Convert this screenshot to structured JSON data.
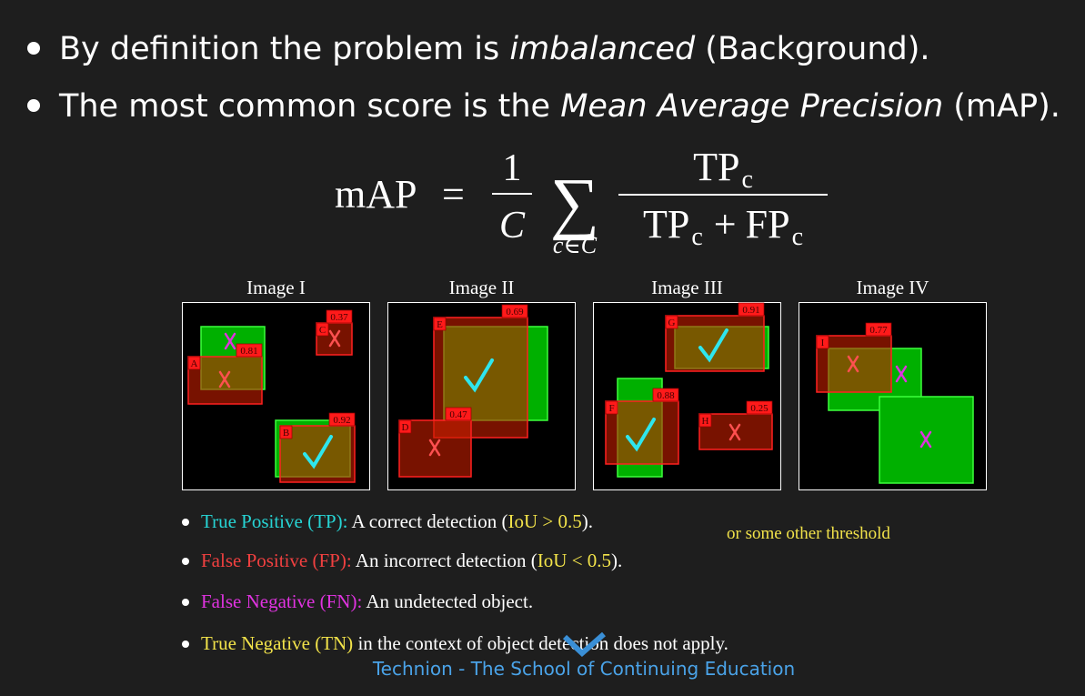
{
  "bullets": [
    {
      "before": "By definition the problem is ",
      "emphasis": "imbalanced",
      "after": " (Background)."
    },
    {
      "before": "The most common score is the ",
      "emphasis": "Mean Average Precision",
      "after": " (mAP)."
    }
  ],
  "formula": {
    "lhs": "mAP",
    "equals": "=",
    "one": "1",
    "C": "C",
    "sum": "∑",
    "sum_index": "c∈C",
    "num_TP": "TP",
    "num_sub": "c",
    "den_TP": "TP",
    "den_TP_sub": "c",
    "plus": "+",
    "den_FP": "FP",
    "den_FP_sub": "c"
  },
  "panels": [
    {
      "title": "Image I",
      "boxes": [
        {
          "label": "A",
          "score": 0.81
        },
        {
          "label": "C",
          "score": 0.37
        },
        {
          "label": "B",
          "score": 0.92
        }
      ]
    },
    {
      "title": "Image II",
      "boxes": [
        {
          "label": "E",
          "score": 0.69
        },
        {
          "label": "D",
          "score": 0.47
        }
      ]
    },
    {
      "title": "Image III",
      "boxes": [
        {
          "label": "G",
          "score": 0.91
        },
        {
          "label": "F",
          "score": 0.88
        },
        {
          "label": "H",
          "score": 0.25
        }
      ]
    },
    {
      "title": "Image IV",
      "boxes": [
        {
          "label": "I",
          "score": 0.77
        }
      ]
    }
  ],
  "definitions": [
    {
      "term": "True Positive (TP):",
      "text": " A correct detection (",
      "condition": "IoU > 0.5",
      "end": ")."
    },
    {
      "term": "False Positive (FP):",
      "text": " An incorrect detection (",
      "condition": "IoU < 0.5",
      "end": ")."
    },
    {
      "term": "False Negative (FN):",
      "text": " An undetected object."
    },
    {
      "term": "True Negative (TN)",
      "text": " in the context of object detection does not apply."
    }
  ],
  "note": "or some other threshold",
  "footer": "Technion - The School of Continuing Education"
}
